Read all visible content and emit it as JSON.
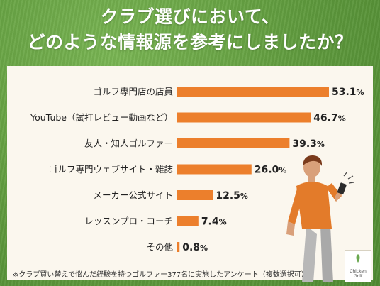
{
  "title": {
    "line1": "クラブ選びにおいて、",
    "line2": "どのような情報源を参考にしましたか？"
  },
  "footnote": "※クラブ買い替えで悩んだ経験を持つゴルファー377名に実施したアンケート（複数選択可）",
  "logo": {
    "line1": "Chicken",
    "line2": "Golf"
  },
  "colors": {
    "bar": "#ec7f2c",
    "background": "#5f9a3d",
    "panel": "#fbf7ee"
  },
  "chart_data": {
    "type": "bar",
    "orientation": "horizontal",
    "categories": [
      "ゴルフ専門店の店員",
      "YouTube（試打レビュー動画など）",
      "友人・知人ゴルファー",
      "ゴルフ専門ウェブサイト・雑誌",
      "メーカー公式サイト",
      "レッスンプロ・コーチ",
      "その他"
    ],
    "values": [
      53.1,
      46.7,
      39.3,
      26.0,
      12.5,
      7.4,
      0.8
    ],
    "value_labels": [
      "53.1",
      "46.7",
      "39.3",
      "26.0",
      "12.5",
      "7.4",
      "0.8"
    ],
    "unit": "%",
    "xlim": [
      0,
      100
    ]
  }
}
